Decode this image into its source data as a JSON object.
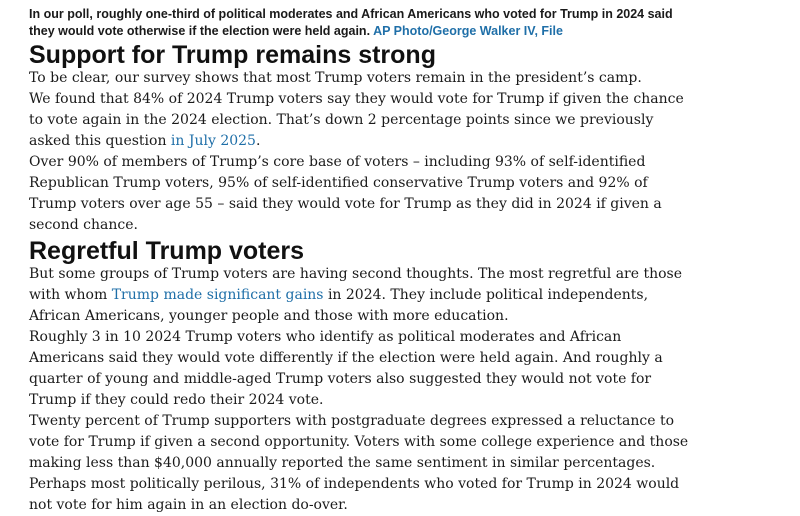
{
  "caption": {
    "text": "In our poll, roughly one-third of political moderates and African Americans who voted for Trump in 2024 said they would vote otherwise if the election were held again.",
    "credit": "AP Photo/George Walker IV, File"
  },
  "section1": {
    "heading": "Support for Trump remains strong",
    "p1": "To be clear, our survey shows that most Trump voters remain in the president’s camp.",
    "p2_text": "We found that 84% of 2024 Trump voters say they would vote for Trump if given the chance to vote again in the 2024 election. That’s down 2 percentage points since we previously asked this question ",
    "p2_link": "in July 2025",
    "p2_end": ".",
    "p3": "Over 90% of members of Trump’s core base of voters – including 93% of self-identified Republican Trump voters, 95% of self-identified conservative Trump voters and 92% of Trump voters over age 55 – said they would vote for Trump as they did in 2024 if given a second chance."
  },
  "section2": {
    "heading": "Regretful Trump voters",
    "p1_start": "But some groups of Trump voters are having second thoughts. The most regretful are those with whom ",
    "p1_link": "Trump made significant gains",
    "p1_end": " in 2024. They include political independents, African Americans, younger people and those with more education.",
    "p2": "Roughly 3 in 10 2024 Trump voters who identify as political moderates and African Americans said they would vote differently if the election were held again. And roughly a quarter of young and middle-aged Trump voters also suggested they would not vote for Trump if they could redo their 2024 vote.",
    "p3": "Twenty percent of Trump supporters with postgraduate degrees expressed a reluctance to vote for Trump if given a second opportunity. Voters with some college experience and those making less than $40,000 annually reported the same sentiment in similar percentages.",
    "p4": "Perhaps most politically perilous, 31% of independents who voted for Trump in 2024 would not vote for him again in an election do-over."
  }
}
